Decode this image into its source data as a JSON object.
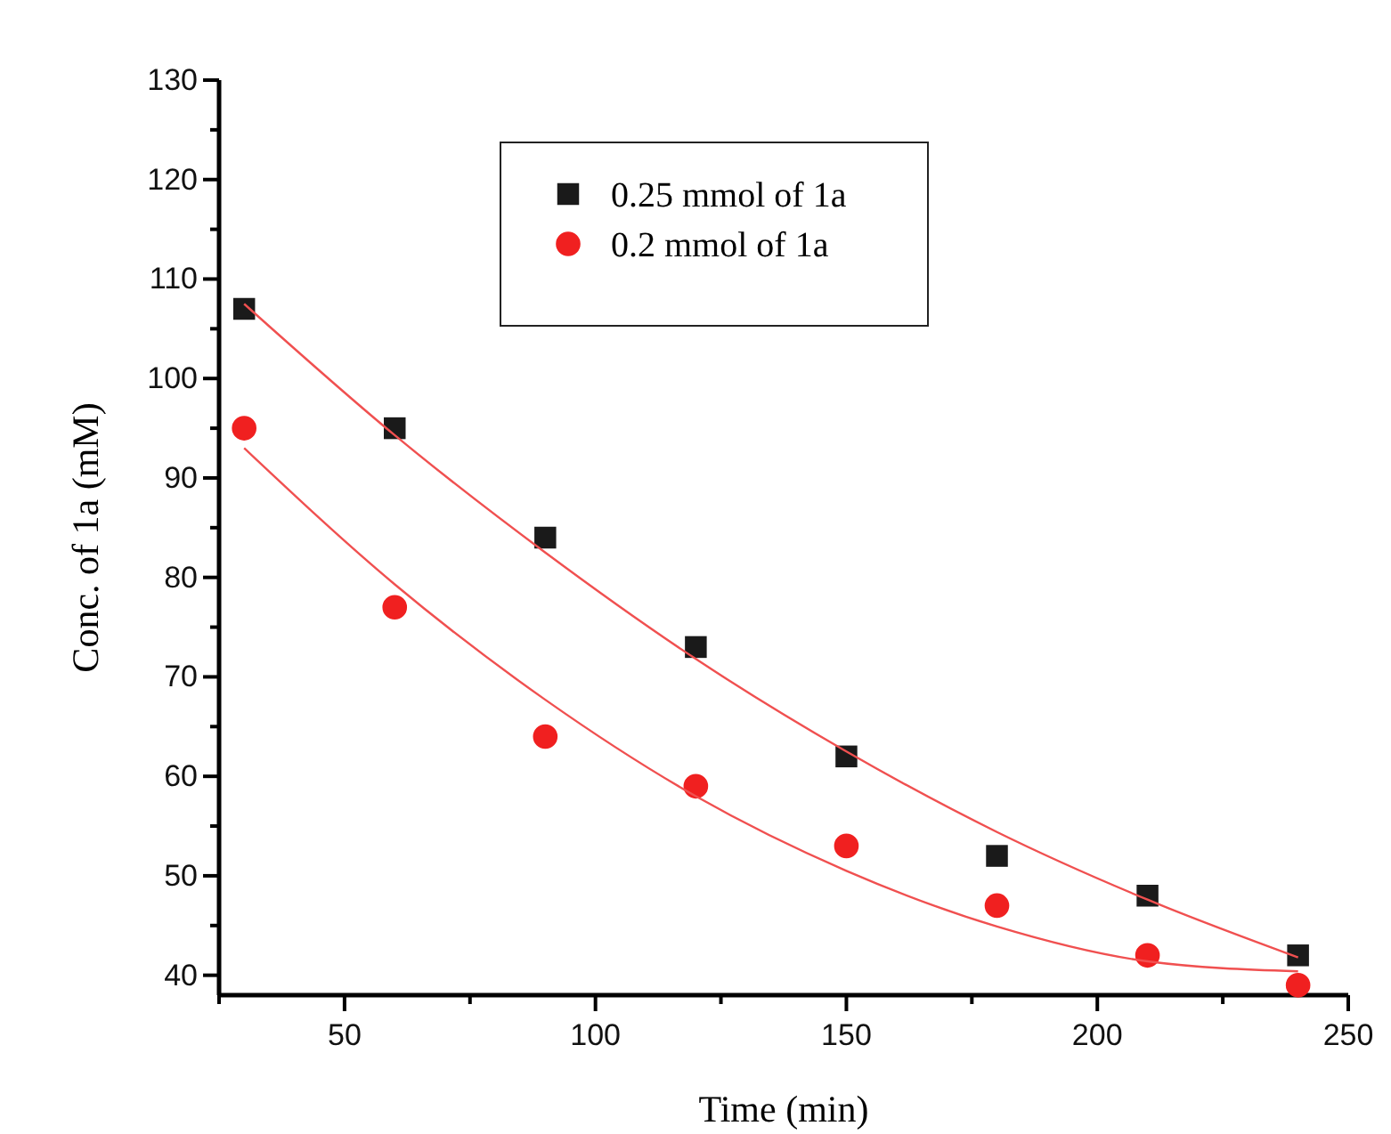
{
  "chart_data": {
    "type": "scatter",
    "xlabel": "Time (min)",
    "ylabel": "Conc. of 1a (mM)",
    "xlim": [
      25,
      250
    ],
    "ylim": [
      38,
      130
    ],
    "xticks": [
      {
        "value": 25,
        "label": null
      },
      50,
      {
        "value": 75,
        "label": null
      },
      100,
      {
        "value": 125,
        "label": null
      },
      150,
      {
        "value": 175,
        "label": null
      },
      200,
      {
        "value": 225,
        "label": null
      },
      250
    ],
    "yticks": [
      40,
      {
        "value": 45,
        "label": null
      },
      50,
      {
        "value": 55,
        "label": null
      },
      60,
      {
        "value": 65,
        "label": null
      },
      70,
      {
        "value": 75,
        "label": null
      },
      80,
      {
        "value": 85,
        "label": null
      },
      90,
      {
        "value": 95,
        "label": null
      },
      100,
      {
        "value": 105,
        "label": null
      },
      110,
      {
        "value": 115,
        "label": null
      },
      120,
      {
        "value": 125,
        "label": null
      },
      130
    ],
    "x": [
      30,
      60,
      90,
      120,
      150,
      180,
      210,
      240
    ],
    "legend": "top",
    "grid": false,
    "series": [
      {
        "name": "0.25 mmol of 1a",
        "color": "#1a1a1a",
        "marker": "square",
        "values": [
          107,
          95,
          84,
          73,
          62,
          52,
          48,
          42
        ]
      },
      {
        "name": "0.2 mmol of 1a",
        "color": "#f02020",
        "marker": "circle",
        "values": [
          95,
          77,
          64,
          59,
          53,
          47,
          42,
          39
        ]
      },
      {
        "type": "line",
        "color": "#f05050",
        "marker": "none",
        "x": [
          30,
          60,
          90,
          120,
          150,
          180,
          210,
          240
        ],
        "values": [
          107.5,
          94.3,
          82.5,
          71.8,
          62.5,
          54.4,
          47.6,
          41.8
        ]
      },
      {
        "type": "line",
        "color": "#f05050",
        "marker": "none",
        "x": [
          30,
          60,
          90,
          120,
          150,
          180,
          210,
          240
        ],
        "values": [
          93,
          79.3,
          67.7,
          58.0,
          50.5,
          44.9,
          41.4,
          40.4
        ]
      }
    ]
  }
}
